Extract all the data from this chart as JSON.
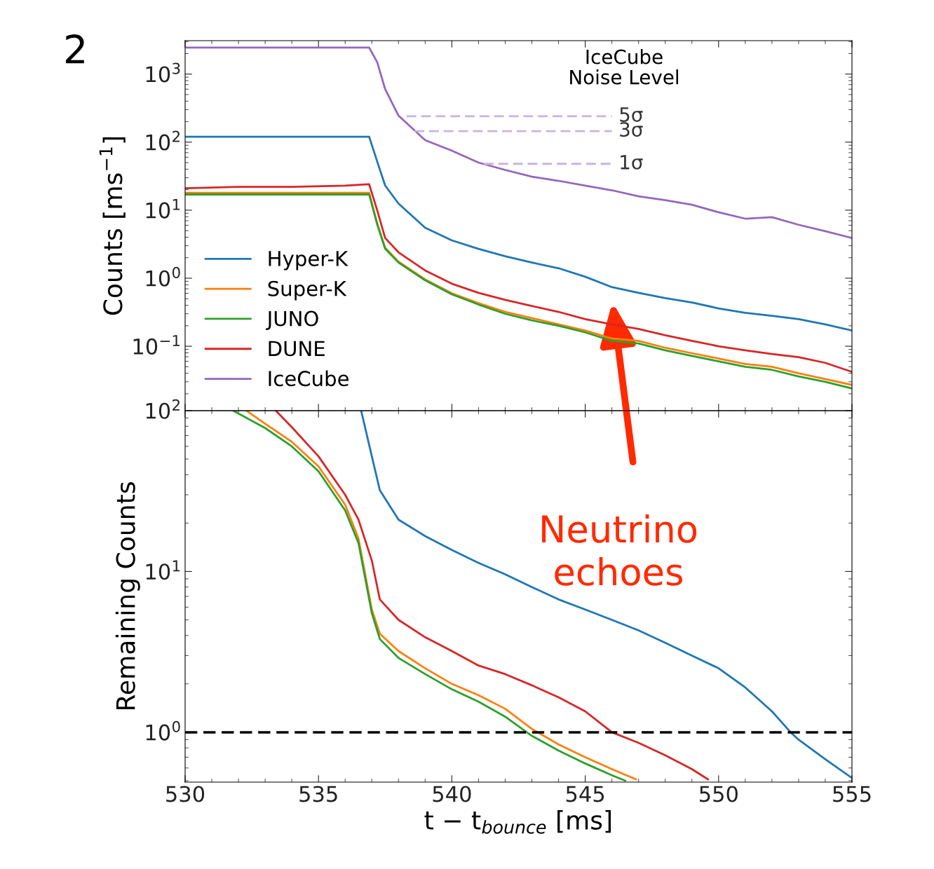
{
  "chart_data": [
    {
      "type": "line",
      "ylabel": "Counts [ms$^{−1}$]",
      "log": "y",
      "xlim": [
        530,
        555
      ],
      "xticks": [
        530,
        535,
        540,
        545,
        550,
        555
      ],
      "ylim": [
        0.0113,
        3100
      ],
      "yticks": [
        {
          "value": 0.1,
          "label": "10$^{−1}$"
        },
        {
          "value": 1,
          "label": "10$^{0}$"
        },
        {
          "value": 10,
          "label": "10$^{1}$"
        },
        {
          "value": 100,
          "label": "10$^{2}$"
        },
        {
          "value": 1000,
          "label": "10$^{3}$"
        }
      ],
      "tick_labels": "y",
      "legend": "bottom left",
      "grid": false,
      "annotations": [
        "2",
        "IceCube\nNoise Level",
        "Neutrino\nechoes"
      ],
      "x": [
        530,
        532,
        534,
        536,
        536.9,
        537.2,
        537.5,
        538,
        539,
        540,
        541,
        542,
        543,
        544,
        545,
        546,
        547,
        548,
        549,
        550,
        551,
        552,
        553,
        554,
        555
      ],
      "series": [
        {
          "name": "Hyper-K",
          "color": "#1f77b4",
          "values": [
            120,
            120,
            120,
            120,
            120,
            52,
            23,
            12.5,
            5.5,
            3.6,
            2.7,
            2.1,
            1.7,
            1.4,
            1.05,
            0.74,
            0.61,
            0.51,
            0.44,
            0.36,
            0.31,
            0.28,
            0.25,
            0.21,
            0.17
          ]
        },
        {
          "name": "Super-K",
          "color": "#ff7f0e",
          "values": [
            18,
            18,
            18,
            18,
            18,
            6.4,
            2.8,
            1.75,
            0.96,
            0.6,
            0.43,
            0.32,
            0.26,
            0.21,
            0.17,
            0.13,
            0.12,
            0.095,
            0.079,
            0.066,
            0.055,
            0.05,
            0.04,
            0.033,
            0.027
          ]
        },
        {
          "name": "JUNO",
          "color": "#2ca02c",
          "values": [
            17,
            17,
            17,
            17,
            17,
            6.2,
            2.7,
            1.7,
            0.93,
            0.58,
            0.41,
            0.3,
            0.24,
            0.2,
            0.16,
            0.12,
            0.11,
            0.087,
            0.072,
            0.06,
            0.05,
            0.045,
            0.036,
            0.03,
            0.024
          ]
        },
        {
          "name": "DUNE",
          "color": "#d62728",
          "values": [
            21,
            22,
            22,
            23,
            24,
            10,
            3.9,
            2.4,
            1.3,
            0.83,
            0.61,
            0.48,
            0.39,
            0.32,
            0.25,
            0.21,
            0.18,
            0.145,
            0.12,
            0.1,
            0.087,
            0.077,
            0.069,
            0.057,
            0.042
          ]
        },
        {
          "name": "IceCube",
          "color": "#9467bd",
          "values": [
            2450,
            2450,
            2450,
            2450,
            2450,
            1500,
            600,
            245,
            107,
            75,
            50,
            39,
            31,
            27,
            23,
            19.6,
            16,
            14,
            12,
            9.3,
            7.5,
            7.9,
            6.1,
            4.9,
            3.9
          ]
        },
        {
          "name": "5σ",
          "color": "#c9b3e3",
          "line_style": "dashed",
          "x": [
            538.3,
            546
          ],
          "values": [
            240,
            240
          ]
        },
        {
          "name": "3σ",
          "color": "#c9b3e3",
          "line_style": "dashed",
          "x": [
            538.6,
            546
          ],
          "values": [
            145,
            145
          ]
        },
        {
          "name": "1σ",
          "color": "#c9b3e3",
          "line_style": "dashed",
          "x": [
            541.2,
            546
          ],
          "values": [
            48,
            48
          ]
        }
      ]
    },
    {
      "type": "line",
      "xlabel": "t − t$_{bounce}$ [ms]",
      "ylabel": "Remaining Counts",
      "log": "y",
      "xlim": [
        530,
        555
      ],
      "xticks": [
        530,
        535,
        540,
        545,
        550,
        555
      ],
      "ylim": [
        0.49,
        100
      ],
      "yticks": [
        {
          "value": 1,
          "label": "10$^{0}$"
        },
        {
          "value": 10,
          "label": "10$^{1}$"
        },
        {
          "value": 100,
          "label": "10$^{2}$"
        }
      ],
      "grid": false,
      "ref_lines": [
        {
          "axis": "y",
          "value": 1,
          "color": "#000000",
          "line_style": "dashed"
        }
      ],
      "series": [
        {
          "color": "#1f77b4",
          "x": [
            536.6,
            537,
            537.3,
            538,
            539,
            540,
            541,
            542,
            543,
            544,
            545,
            546,
            547,
            548,
            549,
            550,
            551,
            552,
            552.7,
            553,
            554,
            555
          ],
          "values": [
            100,
            52,
            32,
            21,
            16.6,
            13.6,
            11.3,
            9.6,
            8,
            6.7,
            5.8,
            5,
            4.3,
            3.6,
            3,
            2.5,
            1.9,
            1.35,
            1,
            0.9,
            0.68,
            0.52
          ]
        },
        {
          "color": "#ff7f0e",
          "x": [
            532.3,
            533,
            534,
            535,
            536,
            536.5,
            537,
            537.3,
            538,
            539,
            540,
            541,
            542,
            543,
            544,
            545,
            546,
            546.9
          ],
          "values": [
            100,
            83,
            64,
            45,
            26,
            16,
            5.8,
            4.1,
            3.2,
            2.5,
            2,
            1.7,
            1.4,
            1.05,
            0.84,
            0.7,
            0.59,
            0.51
          ]
        },
        {
          "color": "#2ca02c",
          "x": [
            531.8,
            533,
            534,
            535,
            536,
            536.5,
            537,
            537.3,
            538,
            539,
            540,
            541,
            542,
            543,
            544,
            545,
            546,
            546.5
          ],
          "values": [
            100,
            78,
            60,
            42,
            24,
            15,
            5.5,
            3.8,
            2.9,
            2.3,
            1.85,
            1.55,
            1.25,
            0.95,
            0.77,
            0.64,
            0.54,
            0.5
          ]
        },
        {
          "color": "#d62728",
          "x": [
            533.4,
            534,
            535,
            536,
            536.5,
            537,
            537.3,
            538,
            539,
            540,
            541,
            542,
            543,
            544,
            545,
            546,
            547,
            548,
            549,
            549.6
          ],
          "values": [
            100,
            79,
            52,
            30,
            21,
            11.7,
            6.7,
            5,
            3.9,
            3.2,
            2.6,
            2.3,
            1.96,
            1.65,
            1.35,
            1,
            0.86,
            0.72,
            0.59,
            0.51
          ]
        }
      ]
    }
  ]
}
